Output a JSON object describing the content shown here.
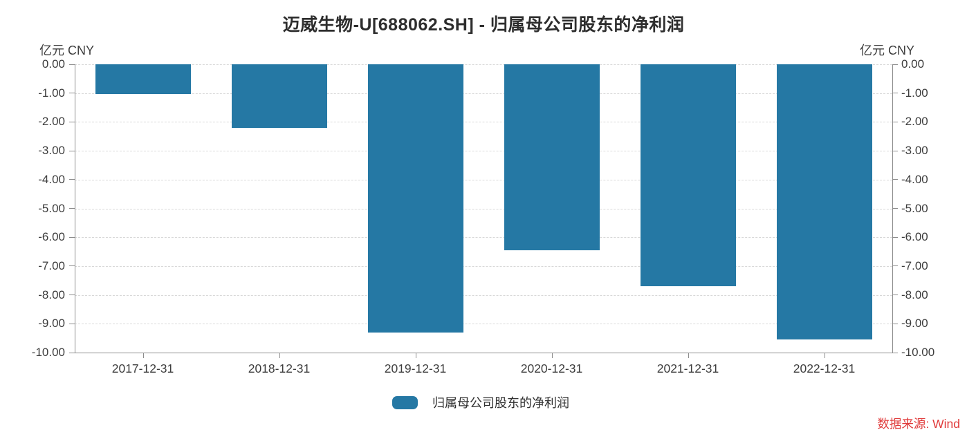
{
  "title": "迈威生物-U[688062.SH] - 归属母公司股东的净利润",
  "axis_unit_left": "亿元 CNY",
  "axis_unit_right": "亿元 CNY",
  "legend": {
    "label": "归属母公司股东的净利润"
  },
  "source": {
    "label": "数据来源: Wind"
  },
  "colors": {
    "bar": "#2578a4",
    "grid": "#d8d8d8",
    "axis": "#8c8c8c",
    "tick_text": "#3d3d3d",
    "title_text": "#2d2d2d",
    "source_text": "#e03a3a"
  },
  "chart_data": {
    "type": "bar",
    "title": "迈威生物-U[688062.SH] - 归属母公司股东的净利润",
    "unit": "亿元 CNY",
    "categories": [
      "2017-12-31",
      "2018-12-31",
      "2019-12-31",
      "2020-12-31",
      "2021-12-31",
      "2022-12-31"
    ],
    "series": [
      {
        "name": "归属母公司股东的净利润",
        "values": [
          -1.03,
          -2.21,
          -9.3,
          -6.44,
          -7.7,
          -9.55
        ]
      }
    ],
    "ylabel": "亿元 CNY",
    "ylim": [
      -10,
      0
    ],
    "ytick_step": 1.0,
    "ytick_labels": [
      "0.00",
      "-1.00",
      "-2.00",
      "-3.00",
      "-4.00",
      "-5.00",
      "-6.00",
      "-7.00",
      "-8.00",
      "-9.00",
      "-10.00"
    ],
    "grid": "horizontal-dashed",
    "legend_position": "bottom",
    "source": "数据来源: Wind"
  }
}
